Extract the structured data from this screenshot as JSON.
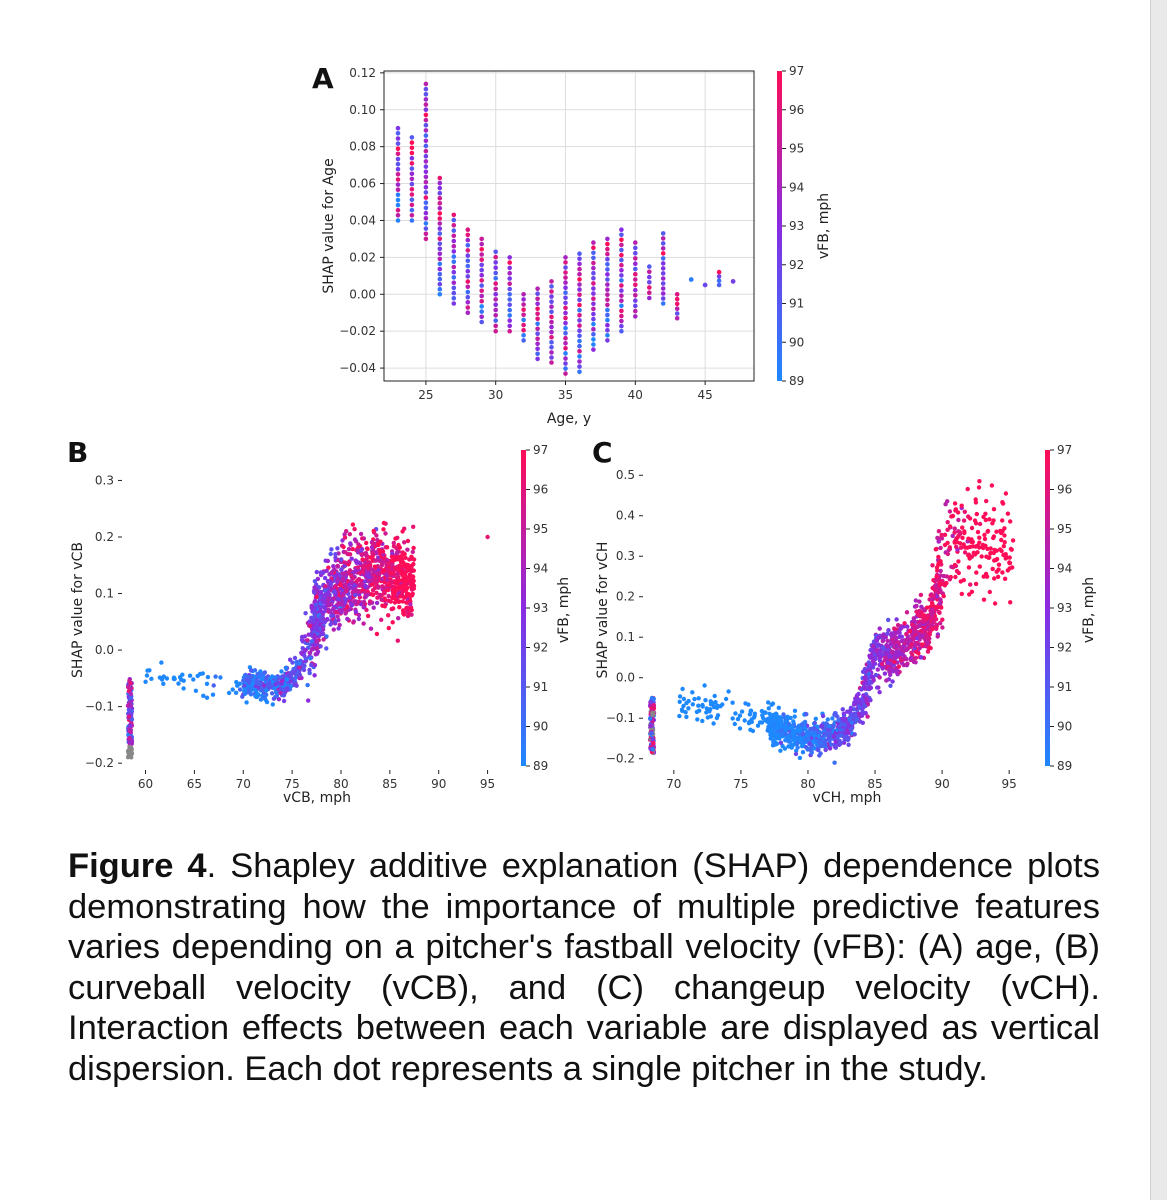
{
  "figure": {
    "caption_label": "Figure 4",
    "caption_text": ". Shapley additive explanation (SHAP) dependence plots demonstrating how the importance of multiple predictive features varies depending on a pitcher's fastball velocity (vFB): (A) age, (B) curveball velocity (vCB), and (C) changeup velocity (vCH). Interaction effects between each variable are displayed as vertical dispersion. Each dot represents a single pitcher in the study.",
    "colorbar": {
      "label": "vFB, mph",
      "range": [
        89,
        97
      ],
      "ticks": [
        "89",
        "90",
        "91",
        "92",
        "93",
        "94",
        "95",
        "96",
        "97"
      ],
      "low_color": "#1e88ff",
      "mid_color": "#8a2be2",
      "high_color": "#ff0d57"
    }
  },
  "chart_data": [
    {
      "panel": "A",
      "type": "scatter",
      "xlabel": "Age, y",
      "ylabel": "SHAP value for Age",
      "xlim": [
        22,
        48.5
      ],
      "ylim": [
        -0.047,
        0.121
      ],
      "xticks": [
        "25",
        "30",
        "35",
        "40",
        "45"
      ],
      "yticks": [
        "−0.04",
        "−0.02",
        "0.00",
        "0.02",
        "0.04",
        "0.06",
        "0.08",
        "0.10",
        "0.12"
      ],
      "grid": true,
      "points_summary": [
        {
          "x": 23,
          "y_min": 0.04,
          "y_max": 0.09
        },
        {
          "x": 24,
          "y_min": 0.04,
          "y_max": 0.085
        },
        {
          "x": 25,
          "y_min": 0.03,
          "y_max": 0.114
        },
        {
          "x": 26,
          "y_min": 0.0,
          "y_max": 0.063
        },
        {
          "x": 27,
          "y_min": -0.005,
          "y_max": 0.043
        },
        {
          "x": 28,
          "y_min": -0.01,
          "y_max": 0.035
        },
        {
          "x": 29,
          "y_min": -0.015,
          "y_max": 0.03
        },
        {
          "x": 30,
          "y_min": -0.02,
          "y_max": 0.023
        },
        {
          "x": 31,
          "y_min": -0.02,
          "y_max": 0.02
        },
        {
          "x": 32,
          "y_min": -0.025,
          "y_max": 0.0
        },
        {
          "x": 33,
          "y_min": -0.035,
          "y_max": 0.003
        },
        {
          "x": 34,
          "y_min": -0.037,
          "y_max": 0.007
        },
        {
          "x": 35,
          "y_min": -0.043,
          "y_max": 0.02
        },
        {
          "x": 36,
          "y_min": -0.042,
          "y_max": 0.022
        },
        {
          "x": 37,
          "y_min": -0.03,
          "y_max": 0.028
        },
        {
          "x": 38,
          "y_min": -0.025,
          "y_max": 0.03
        },
        {
          "x": 39,
          "y_min": -0.02,
          "y_max": 0.035
        },
        {
          "x": 40,
          "y_min": -0.012,
          "y_max": 0.028
        },
        {
          "x": 41,
          "y_min": -0.002,
          "y_max": 0.015
        },
        {
          "x": 42,
          "y_min": -0.005,
          "y_max": 0.033
        },
        {
          "x": 43,
          "y_min": -0.013,
          "y_max": 0.0
        },
        {
          "x": 44,
          "y_min": 0.008,
          "y_max": 0.008
        },
        {
          "x": 45,
          "y_min": 0.005,
          "y_max": 0.005
        },
        {
          "x": 46,
          "y_min": 0.005,
          "y_max": 0.012
        },
        {
          "x": 47,
          "y_min": 0.007,
          "y_max": 0.007
        }
      ]
    },
    {
      "panel": "B",
      "type": "scatter",
      "xlabel": "vCB, mph",
      "ylabel": "SHAP value for vCB",
      "xlim": [
        58,
        97.5
      ],
      "ylim": [
        -0.205,
        0.345
      ],
      "xticks": [
        "60",
        "65",
        "70",
        "75",
        "80",
        "85",
        "90",
        "95"
      ],
      "yticks": [
        "−0.2",
        "−0.1",
        "0.0",
        "0.1",
        "0.2",
        "0.3"
      ],
      "grid": false,
      "trend": [
        {
          "x": 61,
          "y": -0.05
        },
        {
          "x": 65,
          "y": -0.055
        },
        {
          "x": 70,
          "y": -0.06
        },
        {
          "x": 74,
          "y": -0.065
        },
        {
          "x": 76,
          "y": -0.03
        },
        {
          "x": 78,
          "y": 0.08
        },
        {
          "x": 80,
          "y": 0.11
        },
        {
          "x": 82,
          "y": 0.13
        },
        {
          "x": 84,
          "y": 0.14
        },
        {
          "x": 86,
          "y": 0.13
        },
        {
          "x": 87,
          "y": 0.12
        }
      ],
      "outlier": {
        "x": 95,
        "y": 0.2
      }
    },
    {
      "panel": "C",
      "type": "scatter",
      "xlabel": "vCH, mph",
      "ylabel": "SHAP value for vCH",
      "xlim": [
        68,
        97
      ],
      "ylim": [
        -0.218,
        0.55
      ],
      "xticks": [
        "70",
        "75",
        "80",
        "85",
        "90",
        "95"
      ],
      "yticks": [
        "−0.2",
        "−0.1",
        "0.0",
        "0.1",
        "0.2",
        "0.3",
        "0.4",
        "0.5"
      ],
      "grid": false,
      "trend": [
        {
          "x": 70,
          "y": -0.06
        },
        {
          "x": 73,
          "y": -0.08
        },
        {
          "x": 76,
          "y": -0.1
        },
        {
          "x": 79,
          "y": -0.14
        },
        {
          "x": 81,
          "y": -0.15
        },
        {
          "x": 83,
          "y": -0.12
        },
        {
          "x": 84,
          "y": -0.06
        },
        {
          "x": 85,
          "y": 0.06
        },
        {
          "x": 86,
          "y": 0.05
        },
        {
          "x": 87.5,
          "y": 0.09
        },
        {
          "x": 89,
          "y": 0.12
        },
        {
          "x": 90,
          "y": 0.28
        },
        {
          "x": 91,
          "y": 0.33
        },
        {
          "x": 93,
          "y": 0.34
        },
        {
          "x": 95,
          "y": 0.31
        }
      ]
    }
  ]
}
